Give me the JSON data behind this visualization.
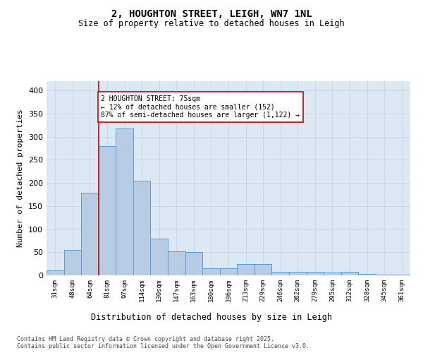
{
  "title_line1": "2, HOUGHTON STREET, LEIGH, WN7 1NL",
  "title_line2": "Size of property relative to detached houses in Leigh",
  "xlabel": "Distribution of detached houses by size in Leigh",
  "ylabel": "Number of detached properties",
  "categories": [
    "31sqm",
    "48sqm",
    "64sqm",
    "81sqm",
    "97sqm",
    "114sqm",
    "130sqm",
    "147sqm",
    "163sqm",
    "180sqm",
    "196sqm",
    "213sqm",
    "229sqm",
    "246sqm",
    "262sqm",
    "279sqm",
    "295sqm",
    "312sqm",
    "328sqm",
    "345sqm",
    "361sqm"
  ],
  "values": [
    10,
    55,
    178,
    280,
    318,
    205,
    80,
    52,
    50,
    15,
    15,
    25,
    25,
    7,
    8,
    8,
    6,
    7,
    3,
    2,
    2
  ],
  "bar_color": "#b8cce4",
  "bar_edge_color": "#5b9bd5",
  "property_line_x": 2.5,
  "annotation_text": "2 HOUGHTON STREET: 75sqm\n← 12% of detached houses are smaller (152)\n87% of semi-detached houses are larger (1,122) →",
  "annotation_box_color": "#ffffff",
  "annotation_box_edge_color": "#cc0000",
  "vline_color": "#cc0000",
  "grid_color": "#c8d8e8",
  "background_color": "#dce9f5",
  "footer_text": "Contains HM Land Registry data © Crown copyright and database right 2025.\nContains public sector information licensed under the Open Government Licence v3.0.",
  "ylim": [
    0,
    420
  ],
  "yticks": [
    0,
    50,
    100,
    150,
    200,
    250,
    300,
    350,
    400
  ]
}
